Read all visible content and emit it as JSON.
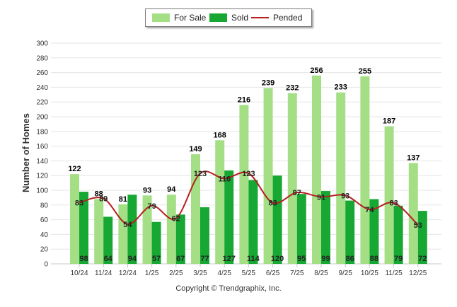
{
  "legend": {
    "for_sale": "For Sale",
    "sold": "Sold",
    "pended": "Pended"
  },
  "footer": "Copyright © Trendgraphix, Inc.",
  "colors": {
    "for_sale": "#a4df86",
    "sold": "#17a833",
    "pended": "#b51f1f"
  },
  "chart_data": {
    "type": "bar",
    "ylabel": "Number of Homes",
    "ylim": [
      0,
      300
    ],
    "yticks": [
      0,
      20,
      40,
      60,
      80,
      100,
      120,
      140,
      160,
      180,
      200,
      220,
      240,
      260,
      280,
      300
    ],
    "grid": true,
    "legend_position": "top-center",
    "categories": [
      "10/24",
      "11/24",
      "12/24",
      "1/25",
      "2/25",
      "3/25",
      "4/25",
      "5/25",
      "6/25",
      "7/25",
      "8/25",
      "9/25",
      "10/25",
      "11/25",
      "12/25"
    ],
    "series": [
      {
        "name": "For Sale",
        "type": "bar",
        "values": [
          122,
          88,
          81,
          93,
          94,
          149,
          168,
          216,
          239,
          232,
          256,
          233,
          255,
          187,
          137
        ]
      },
      {
        "name": "Sold",
        "type": "bar",
        "values": [
          98,
          64,
          94,
          57,
          67,
          77,
          127,
          114,
          120,
          95,
          99,
          86,
          88,
          79,
          72
        ]
      },
      {
        "name": "Pended",
        "type": "line",
        "values": [
          83,
          89,
          54,
          79,
          62,
          123,
          116,
          123,
          83,
          97,
          91,
          93,
          74,
          83,
          53
        ]
      }
    ]
  }
}
